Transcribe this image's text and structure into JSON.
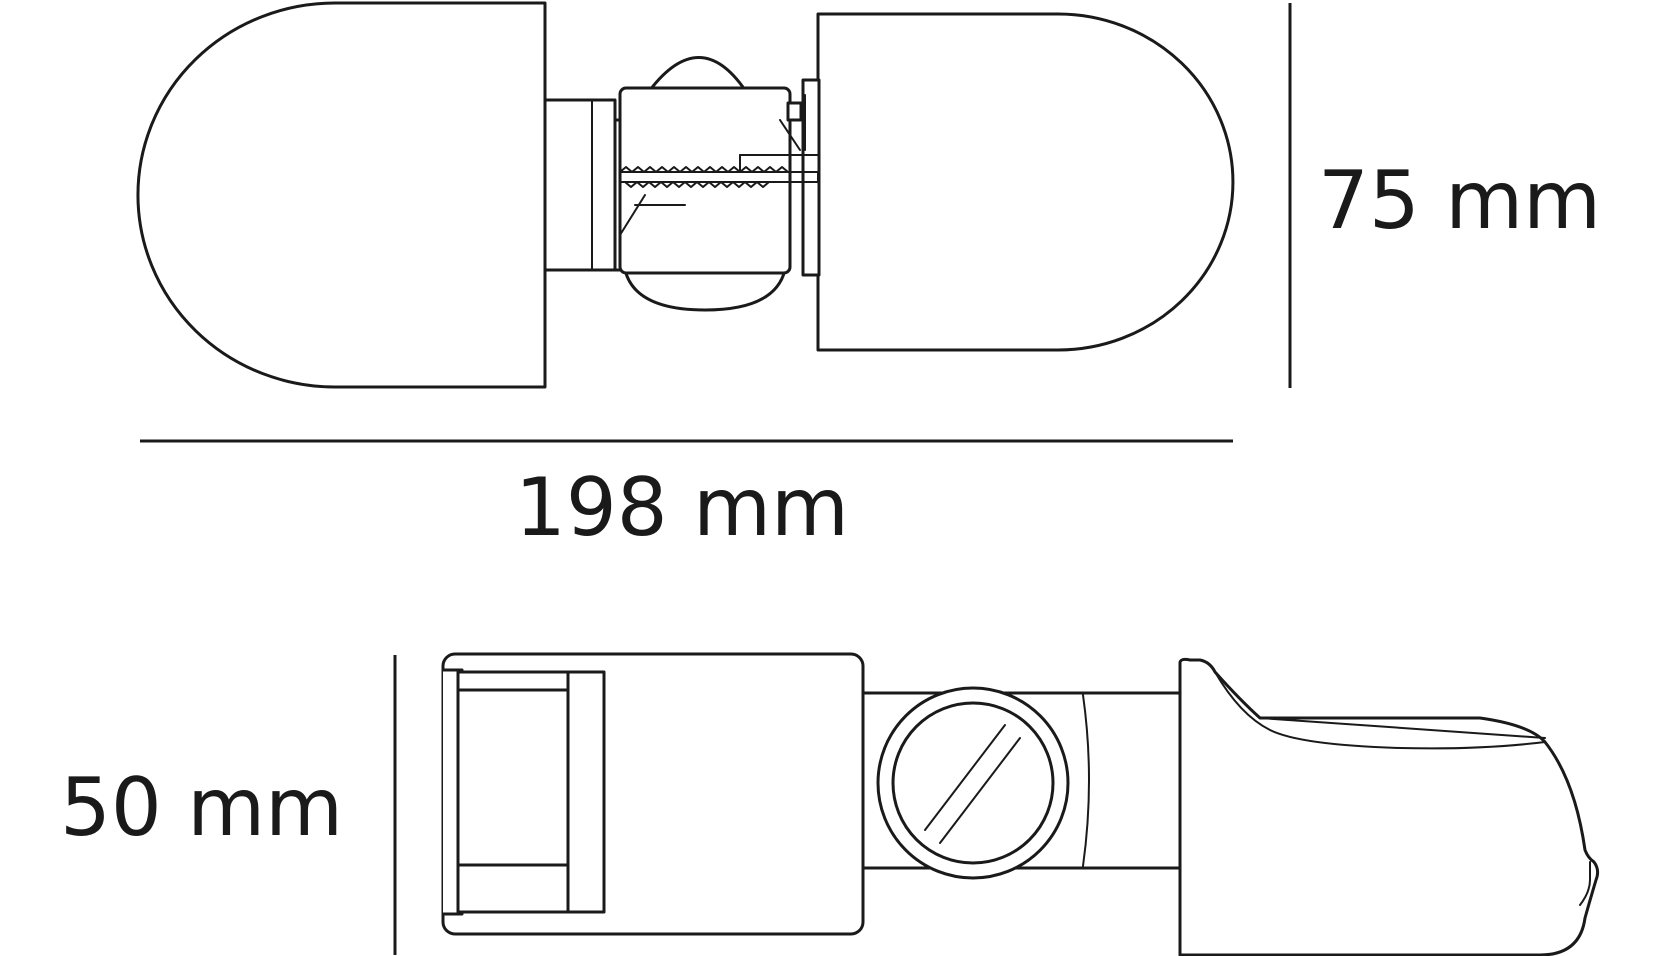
{
  "dimensions": {
    "width_label": "198 mm",
    "height_label": "75 mm",
    "depth_label": "50 mm"
  },
  "colors": {
    "line": "#1a1a1a",
    "fill": "#ffffff"
  }
}
